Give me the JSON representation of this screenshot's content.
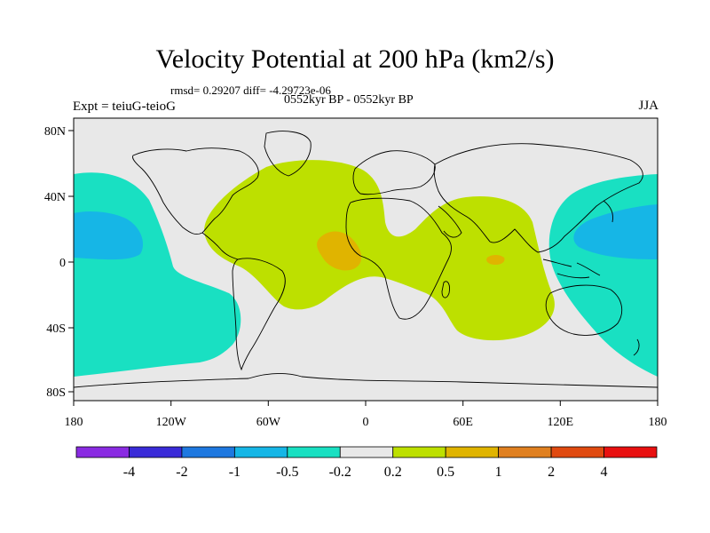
{
  "header": {
    "title": "Velocity Potential at 200 hPa (km2/s)",
    "stats": "rmsd= 0.29207 diff= -4.29723e-06",
    "period": "0552kyr BP - 0552kyr BP",
    "experiment": "Expt = teiuG-teioG",
    "season": "JJA"
  },
  "axes": {
    "lat_labels": [
      "80N",
      "40N",
      "0",
      "40S",
      "80S"
    ],
    "lon_labels": [
      "180",
      "120W",
      "60W",
      "0",
      "60E",
      "120E",
      "180"
    ]
  },
  "colorbar": {
    "colors": [
      "#8a2be2",
      "#3a2bd8",
      "#1e78e0",
      "#16b6e6",
      "#19e0c2",
      "#e8e8e8",
      "#bde000",
      "#e0b400",
      "#e08020",
      "#e04a10",
      "#e81010"
    ],
    "labels": [
      "-4",
      "-2",
      "-1",
      "-0.5",
      "-0.2",
      "0.2",
      "0.5",
      "1",
      "2",
      "4"
    ]
  },
  "map_colors": {
    "background": "#e8e8e8",
    "neg_light": "#19e0c2",
    "neg_mid": "#16b6e6",
    "pos_light": "#bde000",
    "pos_mid": "#e0b400",
    "coast": "#000000"
  }
}
